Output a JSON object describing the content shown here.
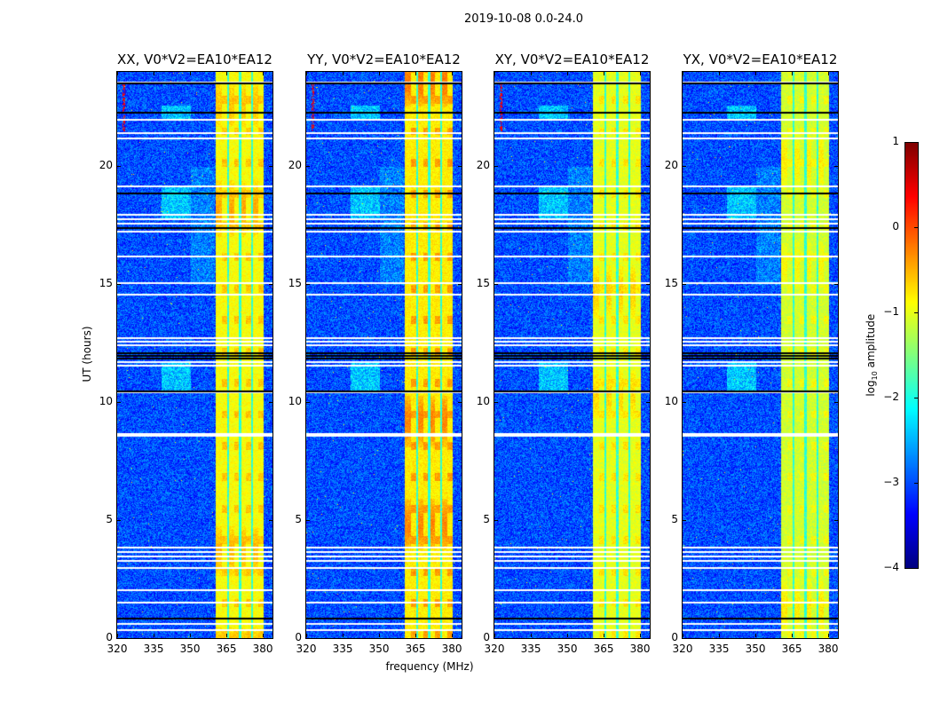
{
  "chart_data": {
    "type": "heatmap",
    "title": "2019-10-08 0.0-24.0",
    "xlabel": "frequency (MHz)",
    "ylabel": "UT (hours)",
    "xlim": [
      320,
      384
    ],
    "ylim": [
      0,
      24
    ],
    "xticks": [
      "320",
      "335",
      "350",
      "365",
      "380"
    ],
    "xtick_values": [
      320,
      335,
      350,
      365,
      380
    ],
    "yticks": [
      "0",
      "5",
      "10",
      "15",
      "20"
    ],
    "ytick_values": [
      0,
      5,
      10,
      15,
      20
    ],
    "panels": [
      {
        "title": "XX, V0*V2=EA10*EA12",
        "band_level": -0.9,
        "hot": 0.6
      },
      {
        "title": "YY, V0*V2=EA10*EA12",
        "band_level": -0.8,
        "hot": 0.8
      },
      {
        "title": "XY, V0*V2=EA10*EA12",
        "band_level": -1.0,
        "hot": 0.5
      },
      {
        "title": "YX, V0*V2=EA10*EA12",
        "band_level": -1.1,
        "hot": 0.4
      }
    ],
    "background_level": -3.0,
    "bright_band_mhz": [
      360.5,
      380
    ],
    "band_dark_lines_mhz": [
      365.5,
      370.5,
      375.5
    ],
    "flagged_hours_white": [
      23.6,
      22.0,
      21.45,
      21.2,
      19.2,
      18.0,
      17.8,
      17.6,
      17.4,
      17.25,
      16.2,
      15.07,
      14.6,
      12.75,
      12.6,
      12.45,
      11.75,
      11.6,
      10.45,
      8.7,
      8.6,
      3.86,
      3.7,
      3.5,
      3.3,
      3.0,
      2.06,
      1.54,
      0.64,
      0.37
    ],
    "flagged_hours_black": [
      23.55,
      22.3,
      18.9,
      17.4,
      12.1,
      12.0,
      11.9,
      10.5,
      0.85
    ],
    "colorbar": {
      "label": "log10 amplitude",
      "label_main": "log",
      "label_sub": "10",
      "label_rest": " amplitude",
      "range": [
        -4,
        1
      ],
      "ticks": [
        "1",
        "0",
        "−1",
        "−2",
        "−3",
        "−4"
      ],
      "tick_values": [
        1,
        0,
        -1,
        -2,
        -3,
        -4
      ],
      "colormap": "jet"
    }
  }
}
